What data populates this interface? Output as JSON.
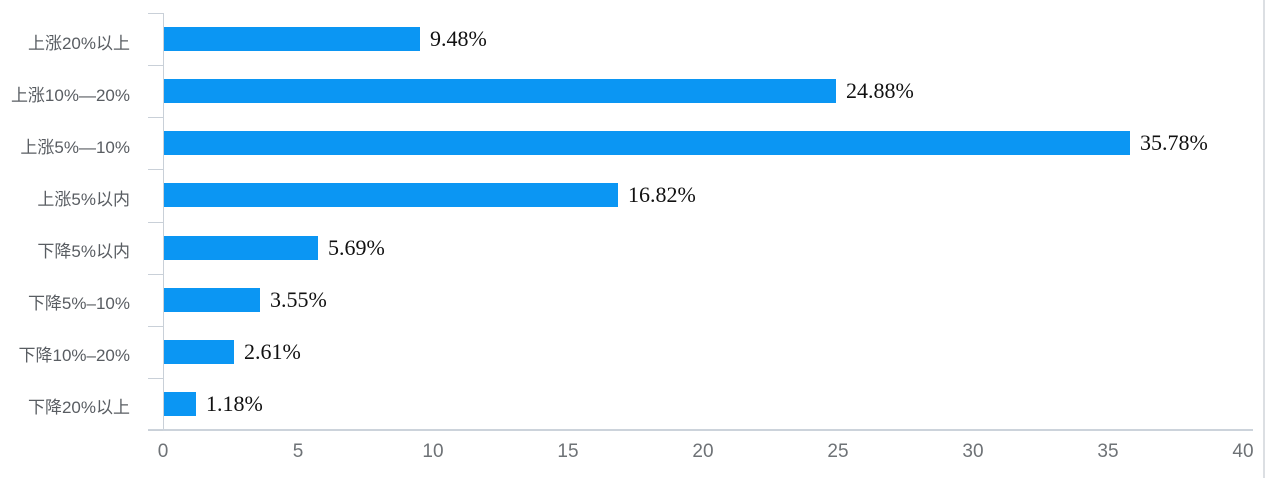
{
  "chart_data": {
    "type": "bar",
    "orientation": "horizontal",
    "title": "",
    "xlabel": "",
    "ylabel": "",
    "categories": [
      "上涨20%以上",
      "上涨10%—20%",
      "上涨5%—10%",
      "上涨5%以内",
      "下降5%以内",
      "下降5%–10%",
      "下降10%–20%",
      "下降20%以上"
    ],
    "values": [
      9.48,
      24.88,
      35.78,
      16.82,
      5.69,
      3.55,
      2.61,
      1.18
    ],
    "data_labels": [
      "9.48%",
      "24.88%",
      "35.78%",
      "16.82%",
      "5.69%",
      "3.55%",
      "2.61%",
      "1.18%"
    ],
    "xlim": [
      0,
      40
    ],
    "x_ticks": [
      0,
      5,
      10,
      15,
      20,
      25,
      30,
      35,
      40
    ],
    "grid": false,
    "legend": "none",
    "bar_color": "#0b96f3",
    "axis_color": "#c9d0d8",
    "value_label_color": "#111111",
    "category_label_color": "#595d62",
    "tick_label_color": "#6e7276"
  }
}
